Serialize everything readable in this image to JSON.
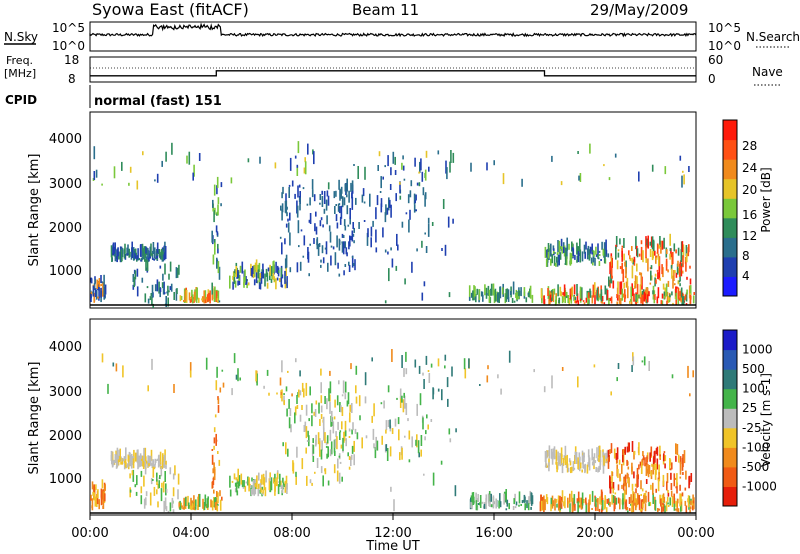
{
  "header": {
    "station": "Syowa East (fitACF)",
    "beam": "Beam 11",
    "date": "29/May/2009"
  },
  "top_panel": {
    "nsky_label": "N.Sky",
    "nsky_ticks": [
      "10^5",
      "10^0"
    ],
    "nsearch_label": "N.Search",
    "freq_label_1": "Freq.",
    "freq_label_2": "[MHz]",
    "freq_ticks": [
      "18",
      "8"
    ],
    "nave_label": "Nave",
    "nave_ticks": [
      "60",
      "0"
    ],
    "cpid_label": "CPID",
    "cpid_value": "normal (fast) 151"
  },
  "chart_data": [
    {
      "type": "heatmap",
      "quantity": "Power",
      "ylabel": "Slant Range [km]",
      "xlabel": "",
      "ylim": [
        200,
        4500
      ],
      "xlim": [
        0,
        24
      ],
      "yticks": [
        1000,
        2000,
        3000,
        4000
      ],
      "colorbar": {
        "label": "Power [dB]",
        "ticks": [
          "4",
          "8",
          "12",
          "16",
          "20",
          "24",
          "28"
        ],
        "colors": [
          "#1c1cff",
          "#1f3fb0",
          "#2a6e8c",
          "#2f8c5a",
          "#7ac83a",
          "#e6c428",
          "#f08a1c",
          "#ff5014",
          "#ff1a0a"
        ]
      }
    },
    {
      "type": "heatmap",
      "quantity": "Velocity",
      "ylabel": "Slant Range [km]",
      "xlabel": "Time UT",
      "ylim": [
        200,
        4500
      ],
      "xlim": [
        0,
        24
      ],
      "yticks": [
        1000,
        2000,
        3000,
        4000
      ],
      "xticks": [
        "00:00",
        "04:00",
        "08:00",
        "12:00",
        "16:00",
        "20:00",
        "00:00"
      ],
      "colorbar": {
        "label": "Velocity [m s-1]",
        "ticks": [
          "1000",
          "500",
          "100",
          "25",
          "-25",
          "-100",
          "-500",
          "-1000"
        ],
        "colors": [
          "#1c1cc8",
          "#2a5ab4",
          "#2f7a78",
          "#44b44a",
          "#bcbcbc",
          "#f0c428",
          "#f08a1c",
          "#f05a14",
          "#e61e0a"
        ]
      }
    }
  ],
  "frequency_series": {
    "name": "Freq.",
    "x": [
      0,
      5,
      5,
      18,
      18,
      24
    ],
    "y": [
      10.5,
      10.5,
      12.5,
      12.5,
      10.5,
      10.5
    ]
  }
}
